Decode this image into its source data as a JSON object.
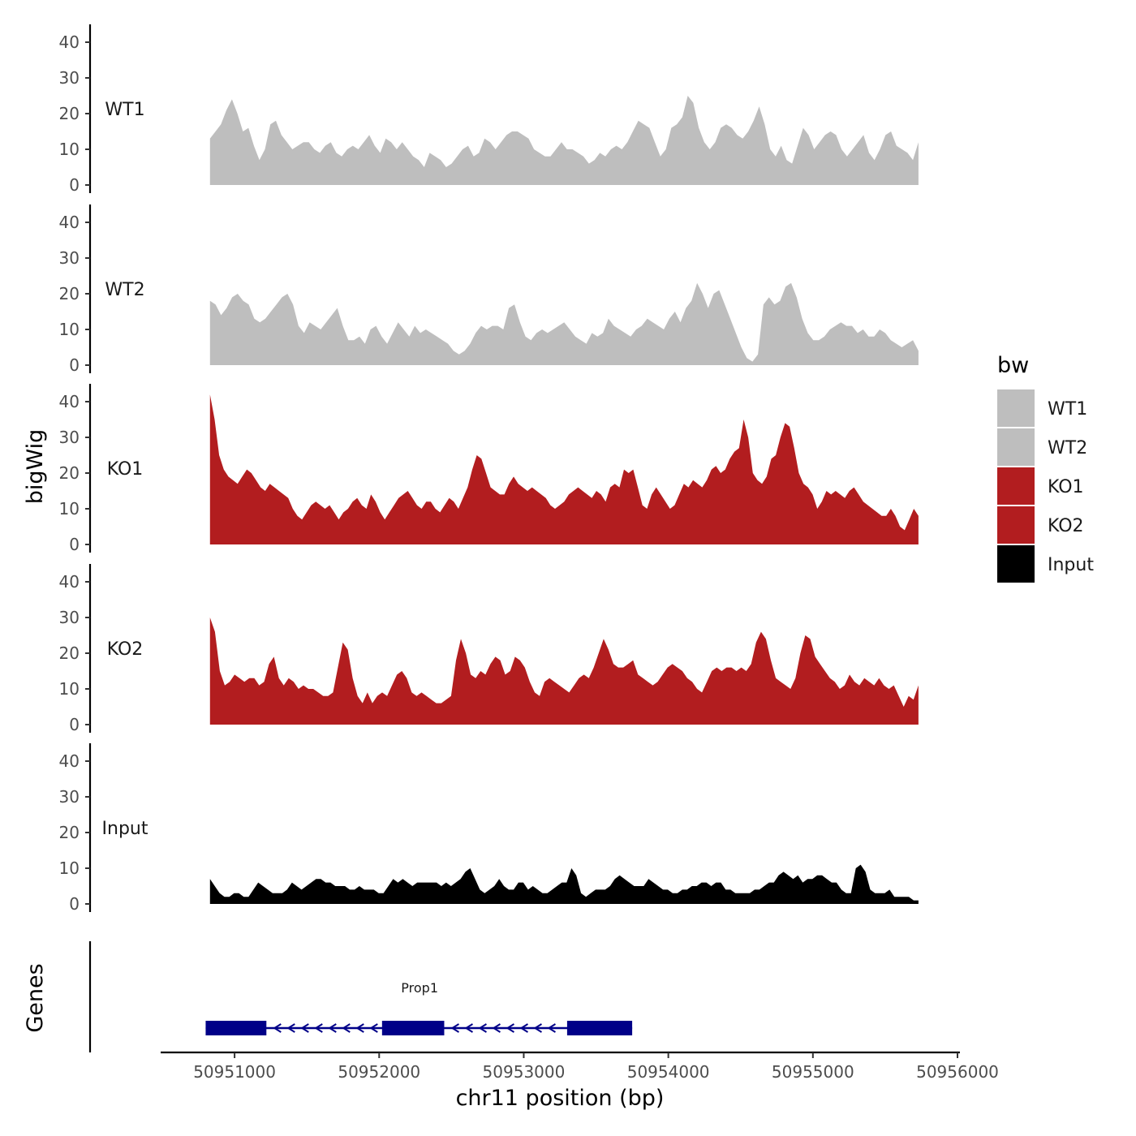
{
  "chart_data": {
    "type": "area",
    "ylabel": "bigWig",
    "xlabel": "chr11 position (bp)",
    "xlim": [
      50950500,
      50956000
    ],
    "x_start": 50950830,
    "x_end": 50955730,
    "x_ticks": [
      50951000,
      50952000,
      50953000,
      50954000,
      50955000,
      50956000
    ],
    "x_tick_labels": [
      "50951000",
      "50952000",
      "50953000",
      "50954000",
      "50955000",
      "50956000"
    ],
    "ylim": [
      0,
      45
    ],
    "y_ticks": [
      0,
      10,
      20,
      30,
      40
    ],
    "y_tick_labels": [
      "0",
      "10",
      "20",
      "30",
      "40"
    ],
    "series": [
      {
        "name": "WT1",
        "color": "#BEBEBE",
        "values": [
          13,
          15,
          17,
          21,
          24,
          20,
          15,
          16,
          11,
          7,
          10,
          17,
          18,
          14,
          12,
          10,
          11,
          12,
          12,
          10,
          9,
          11,
          12,
          9,
          8,
          10,
          11,
          10,
          12,
          14,
          11,
          9,
          13,
          12,
          10,
          12,
          10,
          8,
          7,
          5,
          9,
          8,
          7,
          5,
          6,
          8,
          10,
          11,
          8,
          9,
          13,
          12,
          10,
          12,
          14,
          15,
          15,
          14,
          13,
          10,
          9,
          8,
          8,
          10,
          12,
          10,
          10,
          9,
          8,
          6,
          7,
          9,
          8,
          10,
          11,
          10,
          12,
          15,
          18,
          17,
          16,
          12,
          8,
          10,
          16,
          17,
          19,
          25,
          23,
          16,
          12,
          10,
          12,
          16,
          17,
          16,
          14,
          13,
          15,
          18,
          22,
          17,
          10,
          8,
          11,
          7,
          6,
          11,
          16,
          14,
          10,
          12,
          14,
          15,
          14,
          10,
          8,
          10,
          12,
          14,
          9,
          7,
          10,
          14,
          15,
          11,
          10,
          9,
          7,
          12
        ]
      },
      {
        "name": "WT2",
        "color": "#BEBEBE",
        "values": [
          18,
          17,
          14,
          16,
          19,
          20,
          18,
          17,
          13,
          12,
          13,
          15,
          17,
          19,
          20,
          17,
          11,
          9,
          12,
          11,
          10,
          12,
          14,
          16,
          11,
          7,
          7,
          8,
          6,
          10,
          11,
          8,
          6,
          9,
          12,
          10,
          8,
          11,
          9,
          10,
          9,
          8,
          7,
          6,
          4,
          3,
          4,
          6,
          9,
          11,
          10,
          11,
          11,
          10,
          16,
          17,
          12,
          8,
          7,
          9,
          10,
          9,
          10,
          11,
          12,
          10,
          8,
          7,
          6,
          9,
          8,
          9,
          13,
          11,
          10,
          9,
          8,
          10,
          11,
          13,
          12,
          11,
          10,
          13,
          15,
          12,
          16,
          18,
          23,
          20,
          16,
          20,
          21,
          17,
          13,
          9,
          5,
          2,
          1,
          3,
          17,
          19,
          17,
          18,
          22,
          23,
          19,
          13,
          9,
          7,
          7,
          8,
          10,
          11,
          12,
          11,
          11,
          9,
          10,
          8,
          8,
          10,
          9,
          7,
          6,
          5,
          6,
          7,
          4
        ]
      },
      {
        "name": "KO1",
        "color": "#B21D1F",
        "values": [
          42,
          35,
          25,
          21,
          19,
          18,
          17,
          19,
          21,
          20,
          18,
          16,
          15,
          17,
          16,
          15,
          14,
          13,
          10,
          8,
          7,
          9,
          11,
          12,
          11,
          10,
          11,
          9,
          7,
          9,
          10,
          12,
          13,
          11,
          10,
          14,
          12,
          9,
          7,
          9,
          11,
          13,
          14,
          15,
          13,
          11,
          10,
          12,
          12,
          10,
          9,
          11,
          13,
          12,
          10,
          13,
          16,
          21,
          25,
          24,
          20,
          16,
          15,
          14,
          14,
          17,
          19,
          17,
          16,
          15,
          16,
          15,
          14,
          13,
          11,
          10,
          11,
          12,
          14,
          15,
          16,
          15,
          14,
          13,
          15,
          14,
          12,
          16,
          17,
          16,
          21,
          20,
          21,
          16,
          11,
          10,
          14,
          16,
          14,
          12,
          10,
          11,
          14,
          17,
          16,
          18,
          17,
          16,
          18,
          21,
          22,
          20,
          21,
          24,
          26,
          27,
          35,
          30,
          20,
          18,
          17,
          19,
          24,
          25,
          30,
          34,
          33,
          27,
          20,
          17,
          16,
          14,
          10,
          12,
          15,
          14,
          15,
          14,
          13,
          15,
          16,
          14,
          12,
          11,
          10,
          9,
          8,
          8,
          10,
          8,
          5,
          4,
          7,
          10,
          8
        ]
      },
      {
        "name": "KO2",
        "color": "#B21D1F",
        "values": [
          30,
          26,
          15,
          11,
          12,
          14,
          13,
          12,
          13,
          13,
          11,
          12,
          17,
          19,
          13,
          11,
          13,
          12,
          10,
          11,
          10,
          10,
          9,
          8,
          8,
          9,
          16,
          23,
          21,
          13,
          8,
          6,
          9,
          6,
          8,
          9,
          8,
          11,
          14,
          15,
          13,
          9,
          8,
          9,
          8,
          7,
          6,
          6,
          7,
          8,
          18,
          24,
          20,
          14,
          13,
          15,
          14,
          17,
          19,
          18,
          14,
          15,
          19,
          18,
          16,
          12,
          9,
          8,
          12,
          13,
          12,
          11,
          10,
          9,
          11,
          13,
          14,
          13,
          16,
          20,
          24,
          21,
          17,
          16,
          16,
          17,
          18,
          14,
          13,
          12,
          11,
          12,
          14,
          16,
          17,
          16,
          15,
          13,
          12,
          10,
          9,
          12,
          15,
          16,
          15,
          16,
          16,
          15,
          16,
          15,
          17,
          23,
          26,
          24,
          18,
          13,
          12,
          11,
          10,
          13,
          20,
          25,
          24,
          19,
          17,
          15,
          13,
          12,
          10,
          11,
          14,
          12,
          11,
          13,
          12,
          11,
          13,
          11,
          10,
          11,
          8,
          5,
          8,
          7,
          11
        ]
      },
      {
        "name": "Input",
        "color": "#000000",
        "values": [
          7,
          5,
          3,
          2,
          2,
          3,
          3,
          2,
          2,
          4,
          6,
          5,
          4,
          3,
          3,
          3,
          4,
          6,
          5,
          4,
          5,
          6,
          7,
          7,
          6,
          6,
          5,
          5,
          5,
          4,
          4,
          5,
          4,
          4,
          4,
          3,
          3,
          5,
          7,
          6,
          7,
          6,
          5,
          6,
          6,
          6,
          6,
          6,
          5,
          6,
          5,
          6,
          7,
          9,
          10,
          7,
          4,
          3,
          4,
          5,
          7,
          5,
          4,
          4,
          6,
          6,
          4,
          5,
          4,
          3,
          3,
          4,
          5,
          6,
          6,
          10,
          8,
          3,
          2,
          3,
          4,
          4,
          4,
          5,
          7,
          8,
          7,
          6,
          5,
          5,
          5,
          7,
          6,
          5,
          4,
          4,
          3,
          3,
          4,
          4,
          5,
          5,
          6,
          6,
          5,
          6,
          6,
          4,
          4,
          3,
          3,
          3,
          3,
          4,
          4,
          5,
          6,
          6,
          8,
          9,
          8,
          7,
          8,
          6,
          7,
          7,
          8,
          8,
          7,
          6,
          6,
          4,
          3,
          3,
          10,
          11,
          9,
          4,
          3,
          3,
          3,
          4,
          2,
          2,
          2,
          2,
          1,
          1
        ]
      }
    ],
    "legend": {
      "title": "bw",
      "position": "right",
      "entries": [
        {
          "label": "WT1",
          "color": "#BEBEBE"
        },
        {
          "label": "WT2",
          "color": "#BEBEBE"
        },
        {
          "label": "KO1",
          "color": "#B21D1F"
        },
        {
          "label": "KO2",
          "color": "#B21D1F"
        },
        {
          "label": "Input",
          "color": "#000000"
        }
      ]
    },
    "genes_track": {
      "title": "Genes",
      "color": "#000088",
      "genes": [
        {
          "name": "Prop1",
          "strand": "-",
          "start": 50950800,
          "end": 50953750,
          "exons": [
            [
              50950800,
              50951220
            ],
            [
              50952020,
              50952450
            ],
            [
              50953300,
              50953750
            ]
          ]
        }
      ]
    }
  }
}
